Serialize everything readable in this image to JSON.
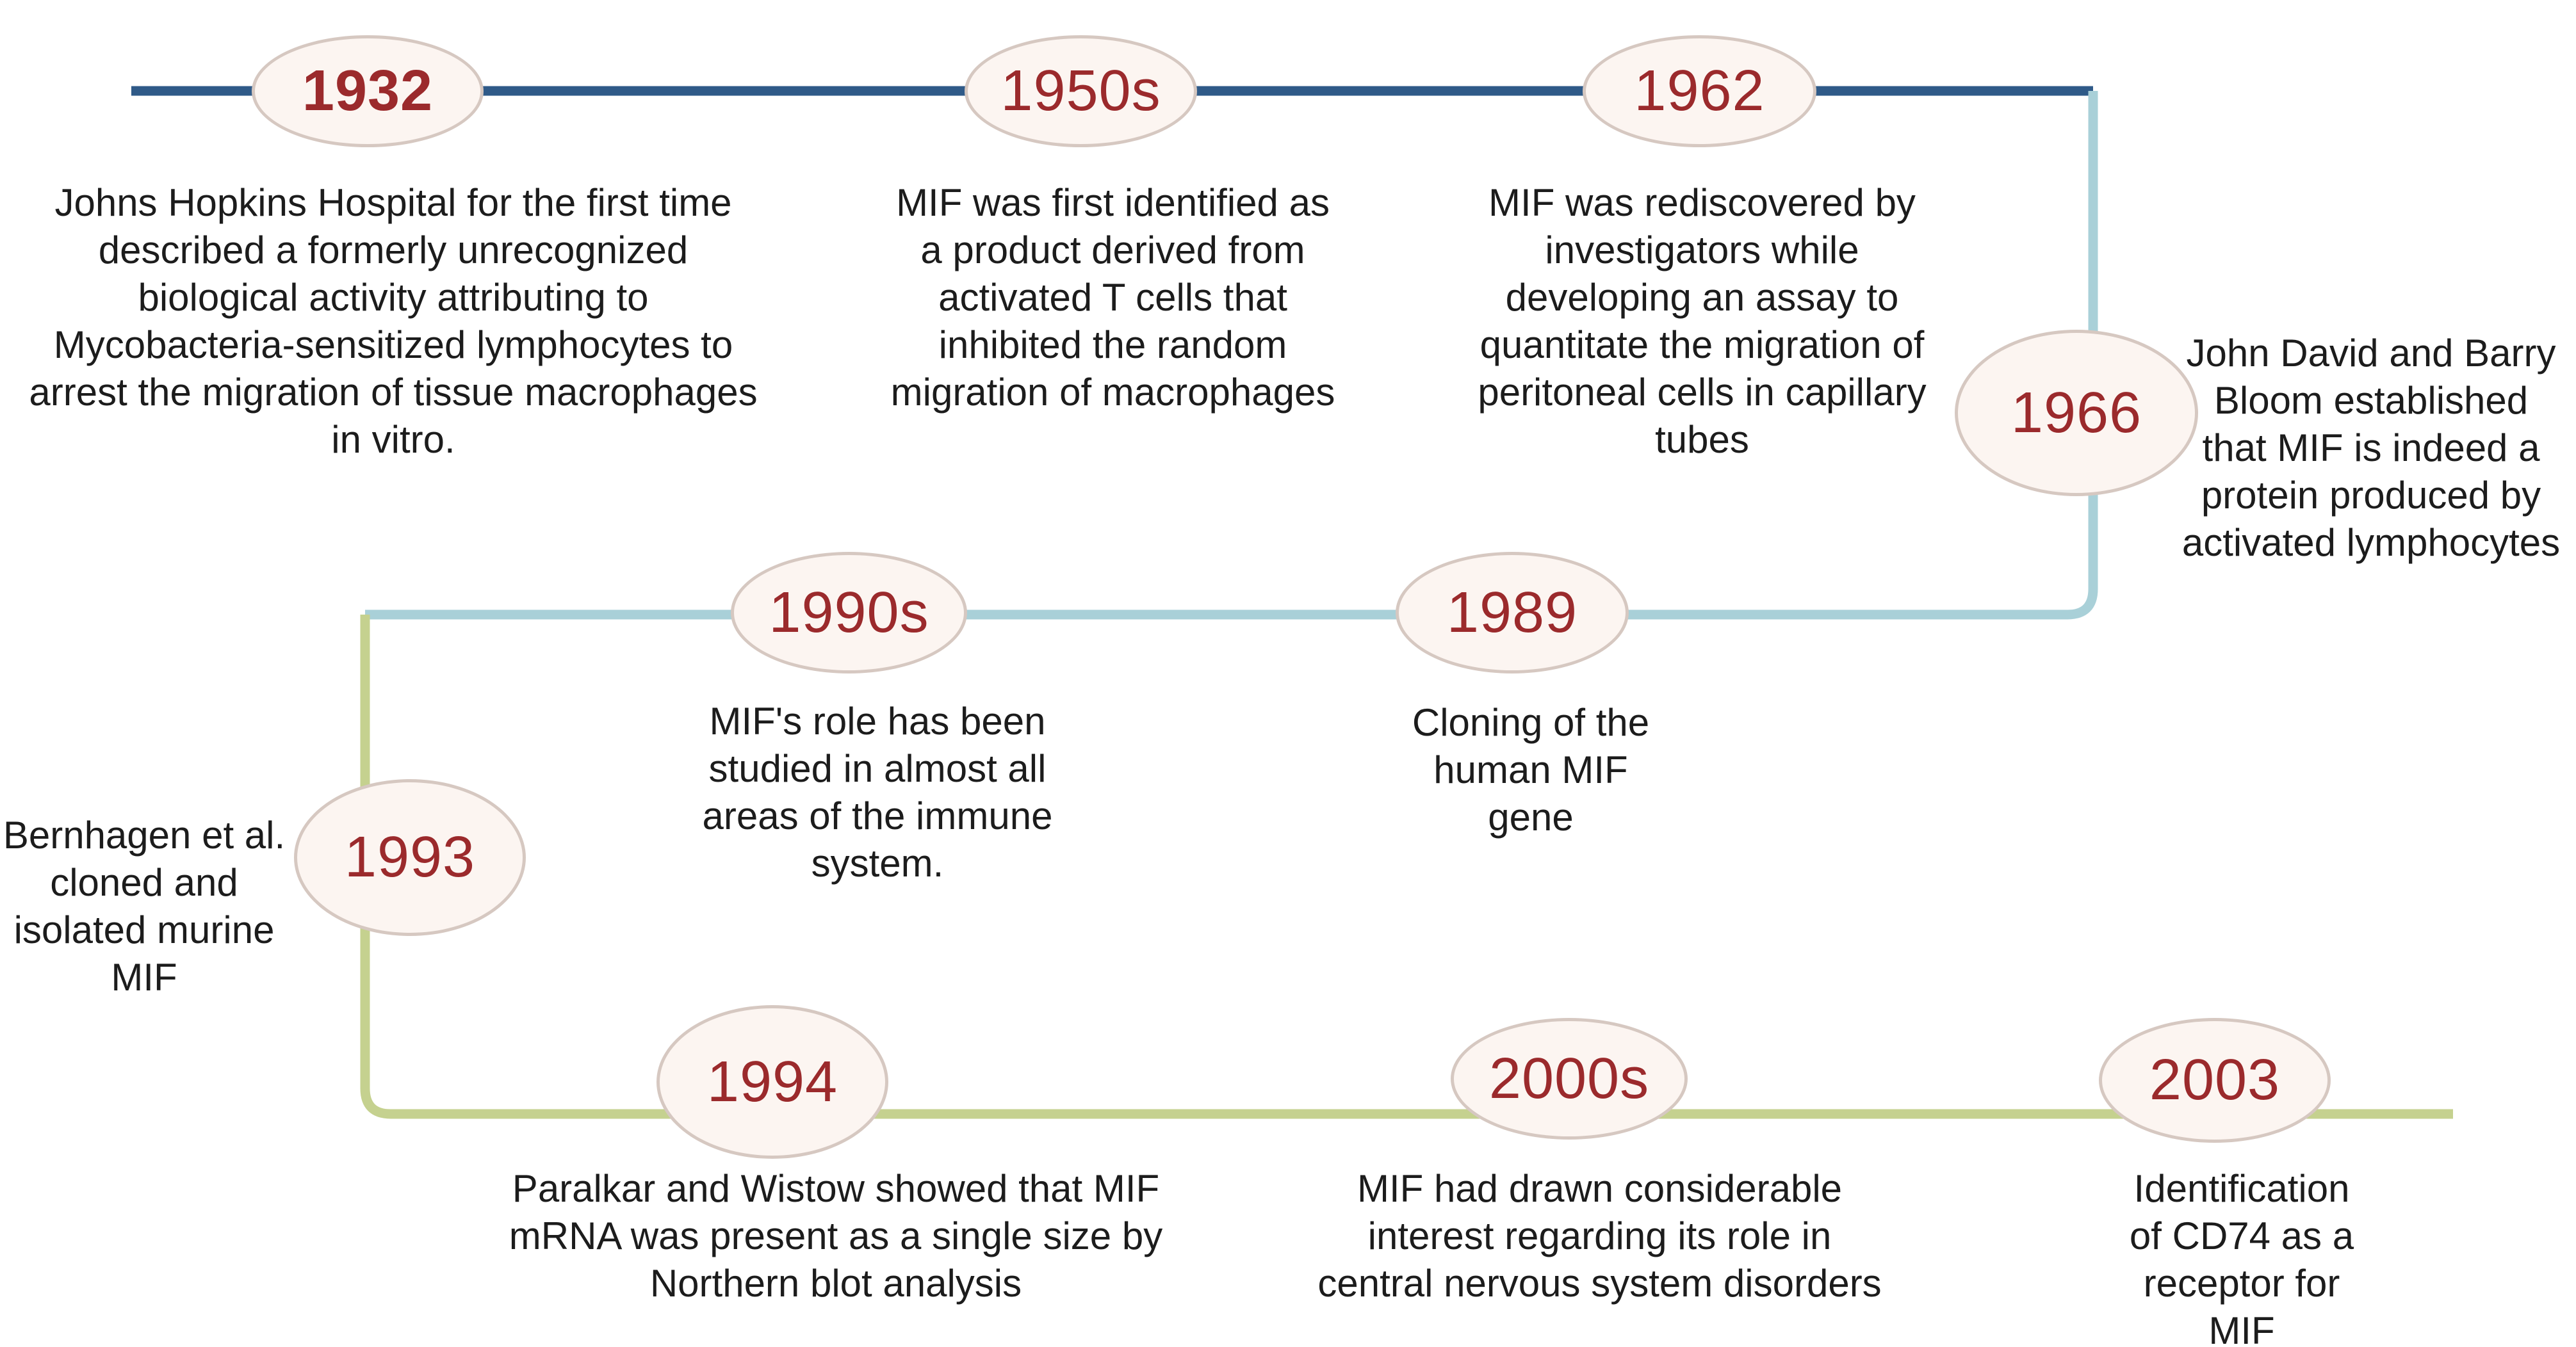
{
  "colors": {
    "segment1": "#2f5a88",
    "segment2": "#a9d0d8",
    "segment3": "#c5d18f",
    "node_fill": "#fcf5f1",
    "node_border": "#d6c8c1",
    "year_text": "#9b2a2c",
    "body_text": "#1c1c1c"
  },
  "events": [
    {
      "year": "1932",
      "text": "Johns Hopkins Hospital for the first time\ndescribed a formerly unrecognized\nbiological activity attributing to\nMycobacteria-sensitized lymphocytes to\narrest the migration of tissue macrophages\nin vitro."
    },
    {
      "year": "1950s",
      "text": "MIF was first identified as\na product derived from\nactivated T cells that\ninhibited the random\nmigration of macrophages"
    },
    {
      "year": "1962",
      "text": "MIF was rediscovered by\ninvestigators while\ndeveloping an assay to\nquantitate the migration of\nperitoneal cells in capillary\ntubes"
    },
    {
      "year": "1966",
      "text": "John David and Barry\nBloom established\nthat MIF is indeed a\nprotein produced by\nactivated lymphocytes"
    },
    {
      "year": "1990s",
      "text": "MIF's role has been\nstudied in almost all\nareas of the immune\nsystem."
    },
    {
      "year": "1989",
      "text": "Cloning of the\nhuman MIF\ngene"
    },
    {
      "year": "1993",
      "text": "Bernhagen et al.\ncloned and\nisolated murine\nMIF"
    },
    {
      "year": "1994",
      "text": "Paralkar and Wistow showed that MIF\nmRNA was present as a single size by\nNorthern blot analysis"
    },
    {
      "year": "2000s",
      "text": "MIF had drawn considerable\ninterest regarding its role in\ncentral nervous system disorders"
    },
    {
      "year": "2003",
      "text": "Identification\nof CD74 as a\nreceptor for\nMIF"
    }
  ]
}
